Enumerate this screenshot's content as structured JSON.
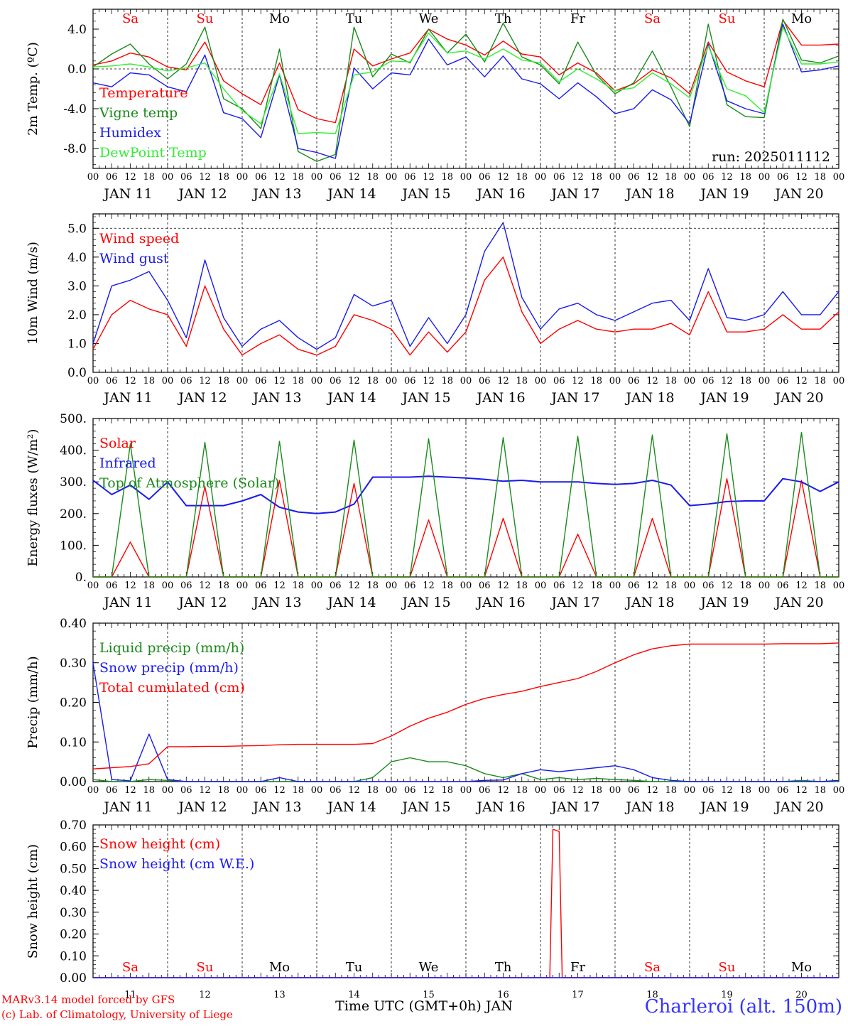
{
  "colors": {
    "red": "#ff0000",
    "green": "#1a8a1a",
    "blue": "#1a1aee",
    "lightgreen": "#33ee33",
    "weekend": "#ff0000",
    "weekday": "#000000"
  },
  "run_label": "run: 2025011112",
  "days": [
    {
      "dow": "Sa",
      "date": "JAN 11",
      "num": "11",
      "weekend": true
    },
    {
      "dow": "Su",
      "date": "JAN 12",
      "num": "12",
      "weekend": true
    },
    {
      "dow": "Mo",
      "date": "JAN 13",
      "num": "13",
      "weekend": false
    },
    {
      "dow": "Tu",
      "date": "JAN 14",
      "num": "14",
      "weekend": false
    },
    {
      "dow": "We",
      "date": "JAN 15",
      "num": "15",
      "weekend": false
    },
    {
      "dow": "Th",
      "date": "JAN 16",
      "num": "16",
      "weekend": false
    },
    {
      "dow": "Fr",
      "date": "JAN 17",
      "num": "17",
      "weekend": false
    },
    {
      "dow": "Sa",
      "date": "JAN 18",
      "num": "18",
      "weekend": true
    },
    {
      "dow": "Su",
      "date": "JAN 19",
      "num": "19",
      "weekend": true
    },
    {
      "dow": "Mo",
      "date": "JAN 20",
      "num": "20",
      "weekend": false
    }
  ],
  "hour_labels": [
    "00",
    "06",
    "12",
    "18"
  ],
  "last_hour_label": "00",
  "footer": {
    "credit1": "MARv3.14 model forced by GFS",
    "credit2": "(c) Lab. of Climatology, University of Liege",
    "xtitle": "Time UTC (GMT+0h) JAN",
    "station": "Charleroi (alt. 150m)"
  },
  "chart_data": [
    {
      "type": "line",
      "ylabel": "2m Temp. (ºC)",
      "ylim": [
        -10,
        6
      ],
      "yticks": [
        4,
        0,
        -4,
        -8
      ],
      "ytick_labels": [
        "4.0",
        "0.0",
        "-4.0",
        "-8.0"
      ],
      "dashed_y": 0,
      "x": [
        0,
        6,
        12,
        18,
        24,
        30,
        36,
        42,
        48,
        54,
        60,
        66,
        72,
        78,
        84,
        90,
        96,
        102,
        108,
        114,
        120,
        126,
        132,
        138,
        144,
        150,
        156,
        162,
        168,
        174,
        180,
        186,
        192,
        198,
        204,
        210,
        216,
        222,
        228,
        234,
        240
      ],
      "series": [
        {
          "name": "Temperature",
          "color": "red",
          "values": [
            0.4,
            0.8,
            1.6,
            1.2,
            0.2,
            -0.1,
            2.7,
            -1.2,
            -2.5,
            -3.6,
            0.6,
            -4.1,
            -5.0,
            -5.4,
            2.0,
            0.3,
            1.0,
            1.6,
            4.0,
            3.0,
            2.4,
            1.4,
            2.8,
            1.5,
            1.2,
            -0.6,
            0.6,
            -0.4,
            -2.2,
            -1.5,
            -0.1,
            -0.9,
            -2.5,
            2.7,
            -0.3,
            -1.2,
            -1.8,
            4.9,
            2.4,
            2.4,
            2.5
          ]
        },
        {
          "name": "Vigne temp",
          "color": "green",
          "values": [
            0.2,
            1.5,
            2.5,
            0.5,
            -1.0,
            0.5,
            4.2,
            -3.0,
            -4.0,
            -6.0,
            2.0,
            -8.3,
            -9.3,
            -8.6,
            4.2,
            -0.8,
            1.5,
            0.6,
            4.0,
            1.6,
            3.5,
            0.7,
            4.6,
            1.2,
            0.4,
            -1.5,
            2.7,
            -0.6,
            -2.5,
            -1.4,
            1.8,
            -1.8,
            -5.8,
            4.5,
            -3.6,
            -4.8,
            -4.9,
            5.0,
            0.9,
            0.6,
            1.3
          ]
        },
        {
          "name": "Humidex",
          "color": "blue",
          "values": [
            -1.4,
            -1.8,
            -0.4,
            -0.6,
            -1.8,
            -2.3,
            1.4,
            -4.4,
            -5.0,
            -6.9,
            -0.6,
            -8.0,
            -8.4,
            -9.0,
            0.1,
            -2.0,
            -0.4,
            -0.6,
            3.0,
            0.4,
            1.2,
            -0.8,
            1.3,
            -1.0,
            -1.5,
            -3.0,
            -1.4,
            -2.8,
            -4.5,
            -4.0,
            -2.1,
            -3.1,
            -5.5,
            2.5,
            -3.2,
            -4.0,
            -4.5,
            4.5,
            -0.3,
            -0.1,
            0.3
          ]
        },
        {
          "name": "DewPoint Temp",
          "color": "lightgreen",
          "values": [
            0.2,
            0.3,
            0.5,
            0.2,
            -0.2,
            0.1,
            0.6,
            -2.0,
            -4.2,
            -5.5,
            -0.5,
            -6.5,
            -6.4,
            -6.5,
            -0.6,
            -0.3,
            0.8,
            0.7,
            3.6,
            1.6,
            1.8,
            1.0,
            2.0,
            0.9,
            0.6,
            -1.3,
            0.0,
            -1.0,
            -2.2,
            -1.9,
            -0.4,
            -1.5,
            -2.9,
            2.3,
            -2.0,
            -2.7,
            -4.4,
            4.2,
            0.5,
            0.5,
            0.7
          ]
        }
      ]
    },
    {
      "type": "line",
      "ylabel": "10m Wind (m/s)",
      "ylim": [
        0,
        5.5
      ],
      "yticks": [
        0,
        1,
        2,
        3,
        4,
        5
      ],
      "ytick_labels": [
        "0.0",
        "1.0",
        "2.0",
        "3.0",
        "4.0",
        "5.0"
      ],
      "dashed_y": 5,
      "x": [
        0,
        6,
        12,
        18,
        24,
        30,
        36,
        42,
        48,
        54,
        60,
        66,
        72,
        78,
        84,
        90,
        96,
        102,
        108,
        114,
        120,
        126,
        132,
        138,
        144,
        150,
        156,
        162,
        168,
        174,
        180,
        186,
        192,
        198,
        204,
        210,
        216,
        222,
        228,
        234,
        240
      ],
      "series": [
        {
          "name": "Wind speed",
          "color": "red",
          "values": [
            0.8,
            2.0,
            2.5,
            2.2,
            2.0,
            0.9,
            3.0,
            1.5,
            0.6,
            1.0,
            1.3,
            0.8,
            0.6,
            0.9,
            2.0,
            1.8,
            1.5,
            0.6,
            1.4,
            0.7,
            1.4,
            3.2,
            4.0,
            2.1,
            1.0,
            1.5,
            1.8,
            1.5,
            1.4,
            1.5,
            1.5,
            1.7,
            1.3,
            2.8,
            1.4,
            1.4,
            1.5,
            2.0,
            1.5,
            1.5,
            2.1
          ]
        },
        {
          "name": "Wind gust",
          "color": "blue",
          "values": [
            1.0,
            3.0,
            3.2,
            3.5,
            2.5,
            1.2,
            3.9,
            1.9,
            0.9,
            1.5,
            1.8,
            1.2,
            0.8,
            1.2,
            2.7,
            2.3,
            2.5,
            0.9,
            1.9,
            1.0,
            2.0,
            4.2,
            5.2,
            2.6,
            1.5,
            2.2,
            2.4,
            2.0,
            1.8,
            2.1,
            2.4,
            2.5,
            1.8,
            3.6,
            1.9,
            1.8,
            2.0,
            2.8,
            2.0,
            2.0,
            2.8
          ]
        }
      ]
    },
    {
      "type": "line",
      "ylabel": "Energy fluxes (W/m²)",
      "ylim": [
        0,
        500
      ],
      "yticks": [
        0,
        100,
        200,
        300,
        400,
        500
      ],
      "ytick_labels": [
        "0.",
        "100.",
        "200.",
        "300.",
        "400.",
        "500."
      ],
      "x": [
        0,
        6,
        12,
        18,
        24,
        30,
        36,
        42,
        48,
        54,
        60,
        66,
        72,
        78,
        84,
        90,
        96,
        102,
        108,
        114,
        120,
        126,
        132,
        138,
        144,
        150,
        156,
        162,
        168,
        174,
        180,
        186,
        192,
        198,
        204,
        210,
        216,
        222,
        228,
        234,
        240
      ],
      "series": [
        {
          "name": "Solar",
          "color": "red",
          "values": [
            0,
            0,
            110,
            0,
            0,
            0,
            285,
            0,
            0,
            0,
            305,
            0,
            0,
            0,
            295,
            0,
            0,
            0,
            180,
            0,
            0,
            0,
            185,
            0,
            0,
            0,
            135,
            0,
            0,
            0,
            185,
            0,
            0,
            0,
            310,
            0,
            0,
            0,
            305,
            0,
            0
          ]
        },
        {
          "name": "Infrared",
          "color": "blue",
          "values": [
            305,
            260,
            290,
            245,
            300,
            225,
            225,
            225,
            240,
            260,
            220,
            205,
            200,
            205,
            230,
            315,
            315,
            315,
            318,
            315,
            312,
            308,
            302,
            305,
            300,
            300,
            300,
            295,
            292,
            295,
            305,
            290,
            225,
            230,
            238,
            240,
            240,
            310,
            300,
            270,
            300
          ]
        },
        {
          "name": "Top of Atmosphere (Solar)",
          "color": "green",
          "values": [
            0,
            0,
            420,
            0,
            0,
            0,
            425,
            0,
            0,
            0,
            428,
            0,
            0,
            0,
            432,
            0,
            0,
            0,
            436,
            0,
            0,
            0,
            440,
            0,
            0,
            0,
            444,
            0,
            0,
            0,
            448,
            0,
            0,
            0,
            452,
            0,
            0,
            0,
            456,
            0,
            0
          ]
        }
      ]
    },
    {
      "type": "line",
      "ylabel": "Precip (mm/h)",
      "ylim": [
        0,
        0.4
      ],
      "yticks": [
        0,
        0.1,
        0.2,
        0.3,
        0.4
      ],
      "ytick_labels": [
        "0.00",
        "0.10",
        "0.20",
        "0.30",
        "0.40"
      ],
      "x": [
        0,
        6,
        12,
        18,
        24,
        30,
        36,
        42,
        48,
        54,
        60,
        66,
        72,
        78,
        84,
        90,
        96,
        102,
        108,
        114,
        120,
        126,
        132,
        138,
        144,
        150,
        156,
        162,
        168,
        174,
        180,
        186,
        192,
        198,
        204,
        210,
        216,
        222,
        228,
        234,
        240
      ],
      "series": [
        {
          "name": "Liquid precip (mm/h)",
          "color": "green",
          "values": [
            0.005,
            0,
            0,
            0.005,
            0.003,
            0,
            0,
            0,
            0,
            0,
            0,
            0,
            0,
            0,
            0,
            0.01,
            0.05,
            0.06,
            0.05,
            0.05,
            0.04,
            0.02,
            0.01,
            0.02,
            0.005,
            0.01,
            0.005,
            0.008,
            0.005,
            0.003,
            0,
            0,
            0,
            0,
            0,
            0,
            0,
            0,
            0.003,
            0,
            0
          ]
        },
        {
          "name": "Snow precip (mm/h)",
          "color": "blue",
          "values": [
            0.3,
            0.005,
            0.002,
            0.12,
            0.005,
            0,
            0,
            0,
            0,
            0,
            0.01,
            0,
            0,
            0,
            0,
            0,
            0,
            0,
            0,
            0,
            0,
            0.003,
            0.004,
            0.02,
            0.03,
            0.025,
            0.03,
            0.035,
            0.04,
            0.03,
            0.01,
            0.003,
            0,
            0,
            0,
            0,
            0,
            0,
            0,
            0,
            0.003
          ]
        },
        {
          "name": "Total cumulated (cm)",
          "color": "red",
          "values": [
            0.032,
            0.035,
            0.038,
            0.045,
            0.088,
            0.088,
            0.089,
            0.089,
            0.09,
            0.091,
            0.093,
            0.094,
            0.094,
            0.094,
            0.094,
            0.096,
            0.115,
            0.14,
            0.16,
            0.175,
            0.195,
            0.21,
            0.22,
            0.228,
            0.24,
            0.25,
            0.26,
            0.278,
            0.3,
            0.32,
            0.335,
            0.343,
            0.347,
            0.347,
            0.347,
            0.347,
            0.347,
            0.348,
            0.348,
            0.348,
            0.35
          ]
        }
      ]
    },
    {
      "type": "line",
      "ylabel": "Snow height (cm)",
      "ylim": [
        0,
        0.7
      ],
      "yticks": [
        0,
        0.1,
        0.2,
        0.3,
        0.4,
        0.5,
        0.6,
        0.7
      ],
      "ytick_labels": [
        "0.00",
        "0.10",
        "0.20",
        "0.30",
        "0.40",
        "0.50",
        "0.60",
        "0.70"
      ],
      "x": [
        0,
        144,
        147,
        148,
        150,
        151,
        240
      ],
      "series": [
        {
          "name": "Snow height (cm)",
          "color": "red",
          "values": [
            0,
            0,
            0,
            0.68,
            0.67,
            0,
            0
          ]
        },
        {
          "name": "Snow height (cm W.E.)",
          "color": "blue",
          "values": [
            0,
            0,
            0,
            0,
            0,
            0,
            0
          ]
        }
      ]
    }
  ]
}
